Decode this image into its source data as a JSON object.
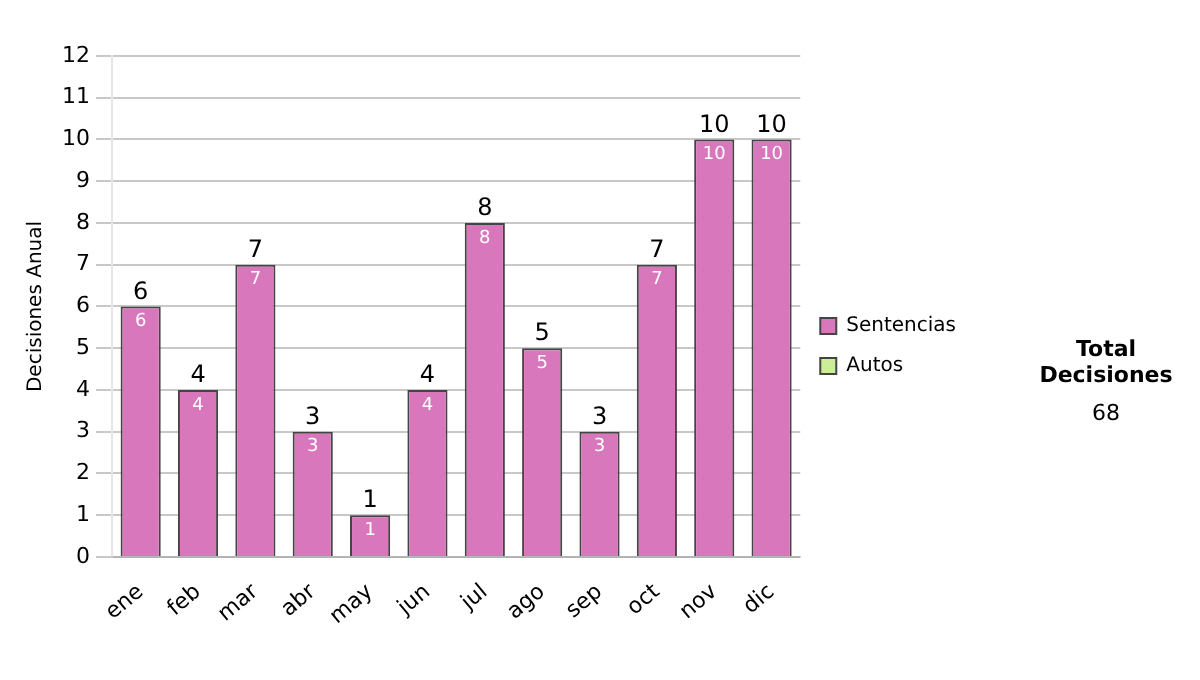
{
  "chart_data": {
    "type": "bar",
    "ylabel": "Decisiones Anual",
    "categories": [
      "ene",
      "feb",
      "mar",
      "abr",
      "may",
      "jun",
      "jul",
      "ago",
      "sep",
      "oct",
      "nov",
      "dic"
    ],
    "series": [
      {
        "name": "Sentencias",
        "color": "#d977bd",
        "values": [
          6,
          4,
          7,
          3,
          1,
          4,
          8,
          5,
          3,
          7,
          10,
          10
        ]
      },
      {
        "name": "Autos",
        "color": "#ccee99",
        "values": [
          null,
          null,
          null,
          null,
          null,
          null,
          null,
          null,
          null,
          null,
          null,
          null
        ]
      }
    ],
    "stacked": true,
    "data_labels": true,
    "totals": [
      "6",
      "4",
      "7",
      "3",
      "1",
      "4",
      "8",
      "5",
      "3",
      "7",
      "10",
      "10"
    ],
    "ylim": [
      0,
      12
    ],
    "yticks": [
      0,
      1,
      2,
      3,
      4,
      5,
      6,
      7,
      8,
      9,
      10,
      11,
      12
    ],
    "grid": "y",
    "legend": "right",
    "annotations": [
      "Total Decisiones",
      "68"
    ]
  }
}
